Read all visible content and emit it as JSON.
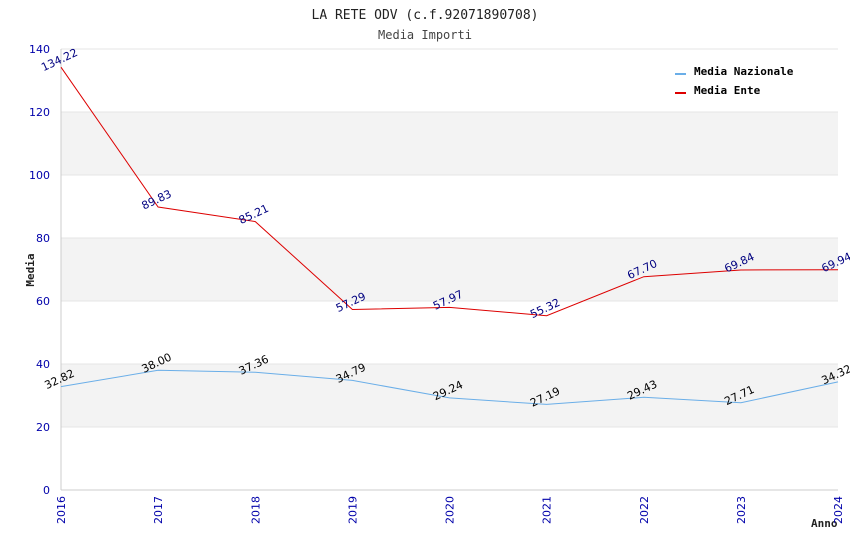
{
  "chart_data": {
    "type": "line",
    "title": "LA RETE ODV (c.f.92071890708)",
    "subtitle": "Media Importi",
    "xlabel": "Anno",
    "ylabel": "Media",
    "categories": [
      "2016",
      "2017",
      "2018",
      "2019",
      "2020",
      "2021",
      "2022",
      "2023",
      "2024"
    ],
    "y_ticks": [
      "0",
      "20",
      "40",
      "60",
      "80",
      "100",
      "120",
      "140"
    ],
    "ylim": [
      0,
      140
    ],
    "grid": true,
    "legend_position": "top-right",
    "series": [
      {
        "name": "Media Nazionale",
        "color": "#6aaee8",
        "label_color": "#000000",
        "values": [
          32.82,
          38.0,
          37.36,
          34.79,
          29.24,
          27.19,
          29.43,
          27.71,
          34.32
        ],
        "labels": [
          "32.82",
          "38.00",
          "37.36",
          "34.79",
          "29.24",
          "27.19",
          "29.43",
          "27.71",
          "34.32"
        ]
      },
      {
        "name": "Media Ente",
        "color": "#dd0000",
        "label_color": "#000080",
        "values": [
          134.22,
          89.83,
          85.21,
          57.29,
          57.97,
          55.32,
          67.7,
          69.84,
          69.94
        ],
        "labels": [
          "134.22",
          "89.83",
          "85.21",
          "57.29",
          "57.97",
          "55.32",
          "67.70",
          "69.84",
          "69.94"
        ]
      }
    ]
  }
}
